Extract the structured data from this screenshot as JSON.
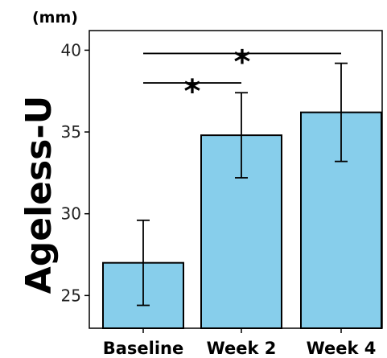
{
  "chart_data": {
    "type": "bar",
    "title": "",
    "unit": "(mm)",
    "xlabel": "",
    "ylabel": "Ageless-U",
    "categories": [
      "Baseline",
      "Week 2",
      "Week 4"
    ],
    "values": [
      27.0,
      34.8,
      36.2
    ],
    "errors": [
      2.6,
      2.6,
      3.0
    ],
    "ylim": [
      23,
      41.2
    ],
    "yticks": [
      25,
      30,
      35,
      40
    ],
    "bar_color": "#87CEEB",
    "bar_edge_color": "#000000",
    "grid": false,
    "significance": [
      {
        "from": 0,
        "to": 1,
        "label": "*",
        "y": 38.0
      },
      {
        "from": 0,
        "to": 2,
        "label": "*",
        "y": 39.8
      }
    ]
  }
}
